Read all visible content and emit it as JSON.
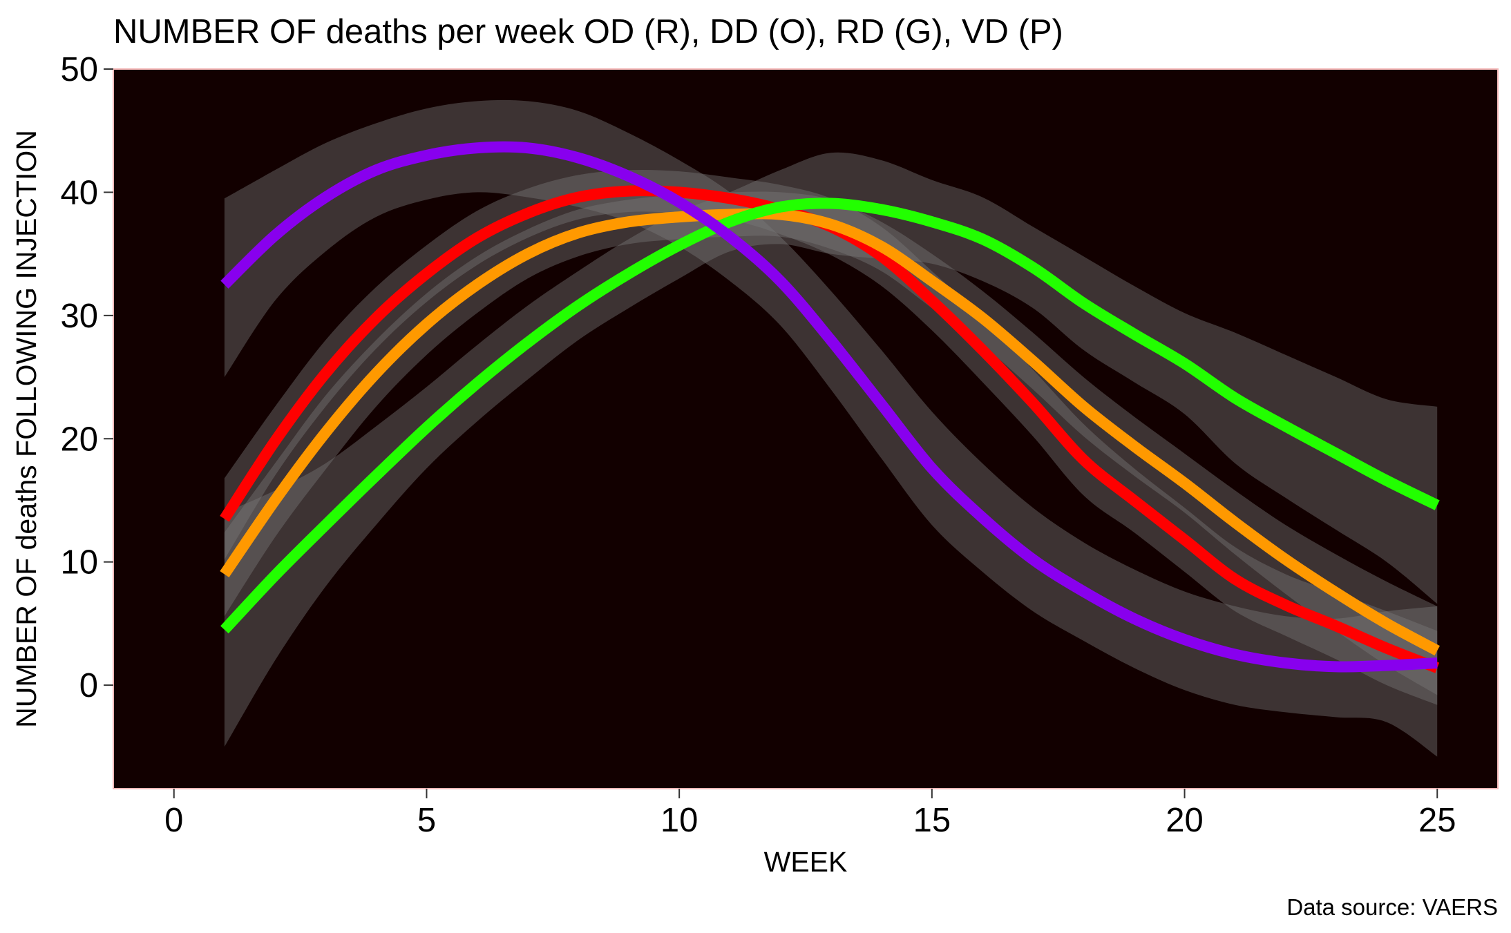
{
  "chart_data": {
    "type": "line",
    "title": "NUMBER OF deaths per week OD (R), DD (O), RD (G), VD (P)",
    "xlabel": "WEEK",
    "ylabel": "NUMBER OF deaths FOLLOWING INJECTION",
    "caption": "Data source: VAERS",
    "xlim": [
      -1.2,
      26.2
    ],
    "ylim": [
      -8.4,
      50
    ],
    "xticks": [
      0,
      5,
      10,
      15,
      20,
      25
    ],
    "yticks": [
      0,
      10,
      20,
      30,
      40,
      50
    ],
    "grid": false,
    "legend": "none",
    "panel_background": "#120000",
    "panel_border": "#f4b6b6",
    "band_color": "#7a7a7a",
    "series": [
      {
        "color": "#ff0000",
        "x": [
          1,
          2,
          3,
          4,
          5,
          6,
          7,
          8,
          9,
          10,
          11,
          12,
          13,
          14,
          15,
          16,
          17,
          18,
          19,
          20,
          21,
          22,
          23,
          24,
          25
        ],
        "y": [
          13.5,
          19.8,
          25.3,
          29.8,
          33.4,
          36.3,
          38.3,
          39.6,
          40.1,
          40.0,
          39.5,
          38.6,
          37.2,
          34.8,
          31.2,
          27.2,
          22.9,
          18.3,
          15.0,
          11.8,
          8.6,
          6.5,
          4.8,
          3.0,
          1.4
        ],
        "upper": [
          16.8,
          22.6,
          28.0,
          32.3,
          35.7,
          38.5,
          40.3,
          41.4,
          41.8,
          41.7,
          41.2,
          40.6,
          39.5,
          37.2,
          33.6,
          29.8,
          25.6,
          21.2,
          17.6,
          14.4,
          11.2,
          9.0,
          7.5,
          6.0,
          4.4
        ],
        "lower": [
          10.2,
          17.0,
          22.6,
          27.3,
          31.1,
          34.1,
          36.3,
          37.8,
          38.4,
          38.3,
          37.8,
          36.6,
          34.9,
          32.4,
          28.8,
          24.6,
          20.2,
          15.4,
          12.4,
          9.2,
          6.0,
          4.0,
          2.1,
          0.0,
          -1.6
        ]
      },
      {
        "color": "#ff9900",
        "x": [
          1,
          2,
          3,
          4,
          5,
          6,
          7,
          8,
          9,
          10,
          11,
          12,
          13,
          14,
          15,
          16,
          17,
          18,
          19,
          20,
          21,
          22,
          23,
          24,
          25
        ],
        "y": [
          9.0,
          15.0,
          20.5,
          25.3,
          29.3,
          32.5,
          35.0,
          36.7,
          37.6,
          38.0,
          38.2,
          38.2,
          37.4,
          35.6,
          32.8,
          29.8,
          26.3,
          22.6,
          19.4,
          16.4,
          13.2,
          10.2,
          7.5,
          5.0,
          2.8
        ],
        "upper": [
          12.4,
          18.0,
          23.5,
          28.0,
          31.8,
          34.8,
          37.0,
          38.6,
          39.4,
          39.8,
          40.0,
          40.0,
          39.4,
          37.6,
          35.0,
          32.0,
          28.6,
          25.0,
          21.8,
          18.8,
          15.8,
          13.0,
          10.6,
          8.4,
          6.4
        ],
        "lower": [
          5.6,
          12.0,
          17.5,
          22.6,
          26.8,
          30.2,
          33.0,
          34.8,
          35.8,
          36.2,
          36.4,
          36.4,
          35.4,
          33.6,
          30.6,
          27.6,
          24.0,
          20.2,
          17.0,
          14.0,
          10.6,
          7.4,
          4.4,
          1.6,
          -0.8
        ]
      },
      {
        "color": "#22ff00",
        "x": [
          1,
          2,
          3,
          4,
          5,
          6,
          7,
          8,
          9,
          10,
          11,
          12,
          13,
          14,
          15,
          16,
          17,
          18,
          19,
          20,
          21,
          22,
          23,
          24,
          25
        ],
        "y": [
          4.5,
          8.9,
          13.0,
          17.0,
          20.9,
          24.5,
          27.8,
          30.8,
          33.4,
          35.7,
          37.6,
          38.8,
          39.1,
          38.6,
          37.6,
          36.2,
          33.9,
          31.0,
          28.5,
          26.1,
          23.3,
          21.0,
          18.8,
          16.6,
          14.6
        ],
        "upper": [
          14.0,
          15.8,
          18.0,
          21.0,
          24.2,
          27.6,
          30.8,
          33.6,
          36.2,
          38.4,
          40.0,
          41.8,
          43.2,
          42.6,
          41.0,
          39.6,
          37.2,
          34.8,
          32.4,
          30.2,
          28.6,
          26.8,
          25.0,
          23.2,
          22.6
        ],
        "lower": [
          -5.0,
          2.0,
          8.0,
          13.0,
          17.6,
          21.4,
          24.8,
          28.0,
          30.6,
          33.0,
          35.2,
          35.8,
          35.0,
          34.6,
          34.2,
          32.8,
          30.6,
          27.2,
          24.6,
          22.0,
          18.0,
          15.2,
          12.6,
          10.0,
          6.6
        ]
      },
      {
        "color": "#8800ee",
        "x": [
          1,
          2,
          3,
          4,
          5,
          6,
          7,
          8,
          9,
          10,
          11,
          12,
          13,
          14,
          15,
          16,
          17,
          18,
          19,
          20,
          21,
          22,
          23,
          24,
          25
        ],
        "y": [
          32.5,
          36.5,
          39.6,
          41.8,
          43.0,
          43.6,
          43.6,
          42.8,
          41.3,
          39.2,
          36.4,
          32.8,
          28.0,
          22.8,
          17.6,
          13.6,
          10.2,
          7.6,
          5.4,
          3.7,
          2.5,
          1.8,
          1.5,
          1.6,
          1.8
        ],
        "upper": [
          39.5,
          41.8,
          44.0,
          45.6,
          46.8,
          47.4,
          47.4,
          46.6,
          44.8,
          42.6,
          40.0,
          36.4,
          32.0,
          27.2,
          22.2,
          18.0,
          14.4,
          11.6,
          9.4,
          7.6,
          6.4,
          5.6,
          5.4,
          6.0,
          6.4
        ],
        "lower": [
          25.0,
          31.2,
          35.2,
          38.0,
          39.4,
          40.0,
          39.6,
          38.8,
          37.6,
          35.6,
          32.8,
          29.2,
          24.0,
          18.4,
          13.0,
          9.2,
          6.0,
          3.6,
          1.4,
          -0.4,
          -1.6,
          -2.2,
          -2.6,
          -3.0,
          -5.8
        ]
      }
    ]
  }
}
